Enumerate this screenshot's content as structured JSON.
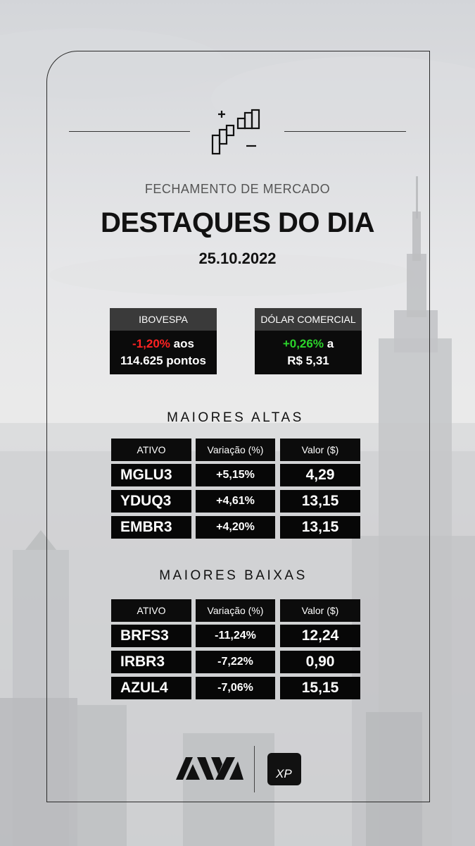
{
  "header": {
    "subtitle": "FECHAMENTO DE MERCADO",
    "title": "DESTAQUES DO DIA",
    "date": "25.10.2022",
    "icon": "market-up-down-icon"
  },
  "indices": [
    {
      "label": "IBOVESPA",
      "change": "-1,20%",
      "mid": " aos",
      "line2": "114.625 pontos",
      "direction": "down"
    },
    {
      "label": "DÓLAR COMERCIAL",
      "change": "+0,26%",
      "mid": " a",
      "line2": "R$ 5,31",
      "direction": "up"
    }
  ],
  "altas": {
    "title": "MAIORES ALTAS",
    "headers": [
      "ATIVO",
      "Variação (%)",
      "Valor ($)"
    ],
    "rows": [
      {
        "ativo": "MGLU3",
        "variacao": "+5,15%",
        "valor": "4,29"
      },
      {
        "ativo": "YDUQ3",
        "variacao": "+4,61%",
        "valor": "13,15"
      },
      {
        "ativo": "EMBR3",
        "variacao": "+4,20%",
        "valor": "13,15"
      }
    ]
  },
  "baixas": {
    "title": "MAIORES BAIXAS",
    "headers": [
      "ATIVO",
      "Variação (%)",
      "Valor ($)"
    ],
    "rows": [
      {
        "ativo": "BRFS3",
        "variacao": "-11,24%",
        "valor": "12,24"
      },
      {
        "ativo": "IRBR3",
        "variacao": "-7,22%",
        "valor": "0,90"
      },
      {
        "ativo": "AZUL4",
        "variacao": "-7,06%",
        "valor": "15,15"
      }
    ]
  },
  "logos": {
    "right_text": "XP",
    "left": "avm-logo",
    "right": "xp-logo"
  },
  "colors": {
    "negative": "#ff2222",
    "positive": "#2bd42b",
    "cell_bg": "#070707"
  }
}
